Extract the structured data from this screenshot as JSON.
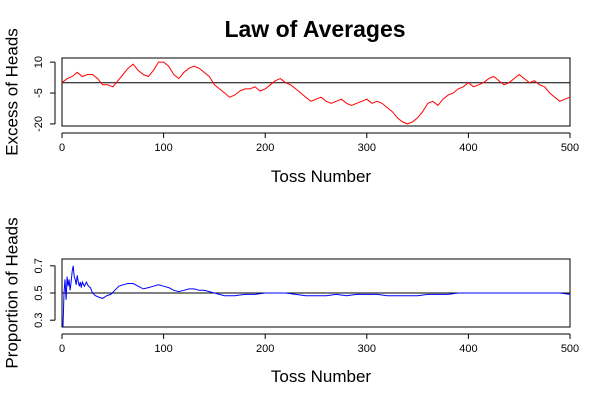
{
  "title": "Law of Averages",
  "chart_data": [
    {
      "type": "line",
      "title": "Law of Averages",
      "xlabel": "Toss Number",
      "ylabel": "Excess of Heads",
      "xlim": [
        0,
        500
      ],
      "ylim": [
        -21,
        12
      ],
      "x_ticks": [
        0,
        100,
        200,
        300,
        400,
        500
      ],
      "y_ticks": [
        -20,
        -5,
        10
      ],
      "reference_line": 0,
      "grid": false,
      "color": "#ff0000",
      "ref_color": "#000000",
      "series": [
        {
          "x": [
            0,
            5,
            10,
            15,
            20,
            25,
            30,
            35,
            40,
            45,
            50,
            55,
            60,
            65,
            70,
            75,
            80,
            85,
            90,
            95,
            100,
            105,
            110,
            115,
            120,
            125,
            130,
            135,
            140,
            145,
            150,
            155,
            160,
            165,
            170,
            175,
            180,
            185,
            190,
            195,
            200,
            205,
            210,
            215,
            220,
            225,
            230,
            235,
            240,
            245,
            250,
            255,
            260,
            265,
            270,
            275,
            280,
            285,
            290,
            295,
            300,
            305,
            310,
            315,
            320,
            325,
            330,
            335,
            340,
            345,
            350,
            355,
            360,
            365,
            370,
            375,
            380,
            385,
            390,
            395,
            400,
            405,
            410,
            415,
            420,
            425,
            430,
            435,
            440,
            445,
            450,
            455,
            460,
            465,
            470,
            475,
            480,
            485,
            490,
            495,
            500
          ],
          "y": [
            0,
            2,
            3,
            5,
            3,
            4,
            4,
            2,
            -1,
            -1,
            -2,
            1,
            4,
            7,
            9,
            6,
            4,
            3,
            6,
            10,
            10,
            8,
            4,
            2,
            5,
            7,
            8,
            7,
            5,
            3,
            -1,
            -3,
            -5,
            -7,
            -6,
            -4,
            -3,
            -3,
            -2,
            -4,
            -3,
            -1,
            1,
            2,
            0,
            -1,
            -3,
            -5,
            -7,
            -9,
            -8,
            -7,
            -9,
            -10,
            -9,
            -8,
            -10,
            -11,
            -10,
            -9,
            -8,
            -10,
            -9,
            -10,
            -12,
            -14,
            -17,
            -19,
            -20,
            -19,
            -17,
            -14,
            -10,
            -9,
            -11,
            -8,
            -6,
            -5,
            -3,
            -2,
            0,
            -2,
            -1,
            0,
            2,
            3,
            1,
            -1,
            0,
            2,
            4,
            2,
            0,
            1,
            -1,
            -2,
            -5,
            -7,
            -9,
            -8,
            -7
          ]
        }
      ]
    },
    {
      "type": "line",
      "xlabel": "Toss Number",
      "ylabel": "Proportion of Heads",
      "xlim": [
        0,
        500
      ],
      "ylim": [
        0.25,
        0.75
      ],
      "x_ticks": [
        0,
        100,
        200,
        300,
        400,
        500
      ],
      "y_ticks": [
        0.3,
        0.5,
        0.7
      ],
      "reference_line": 0.5,
      "grid": false,
      "color": "#0000ff",
      "ref_color": "#000000",
      "series": [
        {
          "x": [
            1,
            2,
            3,
            4,
            5,
            6,
            7,
            8,
            9,
            10,
            11,
            12,
            13,
            14,
            15,
            16,
            17,
            18,
            19,
            20,
            22,
            24,
            26,
            28,
            30,
            33,
            36,
            40,
            44,
            48,
            52,
            56,
            60,
            65,
            70,
            75,
            80,
            85,
            90,
            95,
            100,
            105,
            110,
            115,
            120,
            125,
            130,
            135,
            140,
            145,
            150,
            155,
            160,
            165,
            170,
            180,
            190,
            200,
            210,
            220,
            230,
            240,
            250,
            260,
            270,
            280,
            290,
            300,
            310,
            320,
            330,
            340,
            350,
            360,
            370,
            380,
            390,
            400,
            410,
            420,
            430,
            440,
            450,
            460,
            470,
            480,
            490,
            500
          ],
          "y": [
            0.25,
            0.5,
            0.6,
            0.45,
            0.62,
            0.55,
            0.6,
            0.52,
            0.58,
            0.66,
            0.7,
            0.62,
            0.6,
            0.56,
            0.63,
            0.58,
            0.55,
            0.58,
            0.54,
            0.58,
            0.55,
            0.58,
            0.55,
            0.54,
            0.5,
            0.48,
            0.47,
            0.46,
            0.48,
            0.49,
            0.52,
            0.55,
            0.56,
            0.57,
            0.57,
            0.55,
            0.53,
            0.54,
            0.55,
            0.56,
            0.55,
            0.54,
            0.52,
            0.51,
            0.52,
            0.53,
            0.53,
            0.52,
            0.52,
            0.51,
            0.5,
            0.49,
            0.48,
            0.48,
            0.48,
            0.49,
            0.49,
            0.5,
            0.5,
            0.5,
            0.49,
            0.48,
            0.48,
            0.48,
            0.49,
            0.48,
            0.49,
            0.49,
            0.49,
            0.48,
            0.48,
            0.48,
            0.48,
            0.49,
            0.49,
            0.49,
            0.5,
            0.5,
            0.5,
            0.5,
            0.5,
            0.5,
            0.5,
            0.5,
            0.5,
            0.5,
            0.5,
            0.49
          ]
        }
      ]
    }
  ]
}
